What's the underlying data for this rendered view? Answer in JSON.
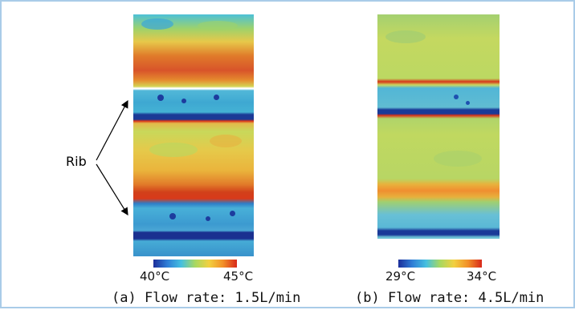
{
  "annotation": {
    "label": "Rib"
  },
  "panels": [
    {
      "id": "a",
      "caption": "(a) Flow rate: 1.5L/min",
      "colorbar": {
        "min_label": "40°C",
        "max_label": "45°C"
      }
    },
    {
      "id": "b",
      "caption": "(b) Flow rate: 4.5L/min",
      "colorbar": {
        "min_label": "29°C",
        "max_label": "34°C"
      }
    }
  ],
  "colors": {
    "frame_border": "#a9cce8",
    "cold": "#1f3a9a",
    "cool": "#3cb0d8",
    "mid": "#c9d94a",
    "warm": "#f0a020",
    "hot": "#d42a14"
  }
}
